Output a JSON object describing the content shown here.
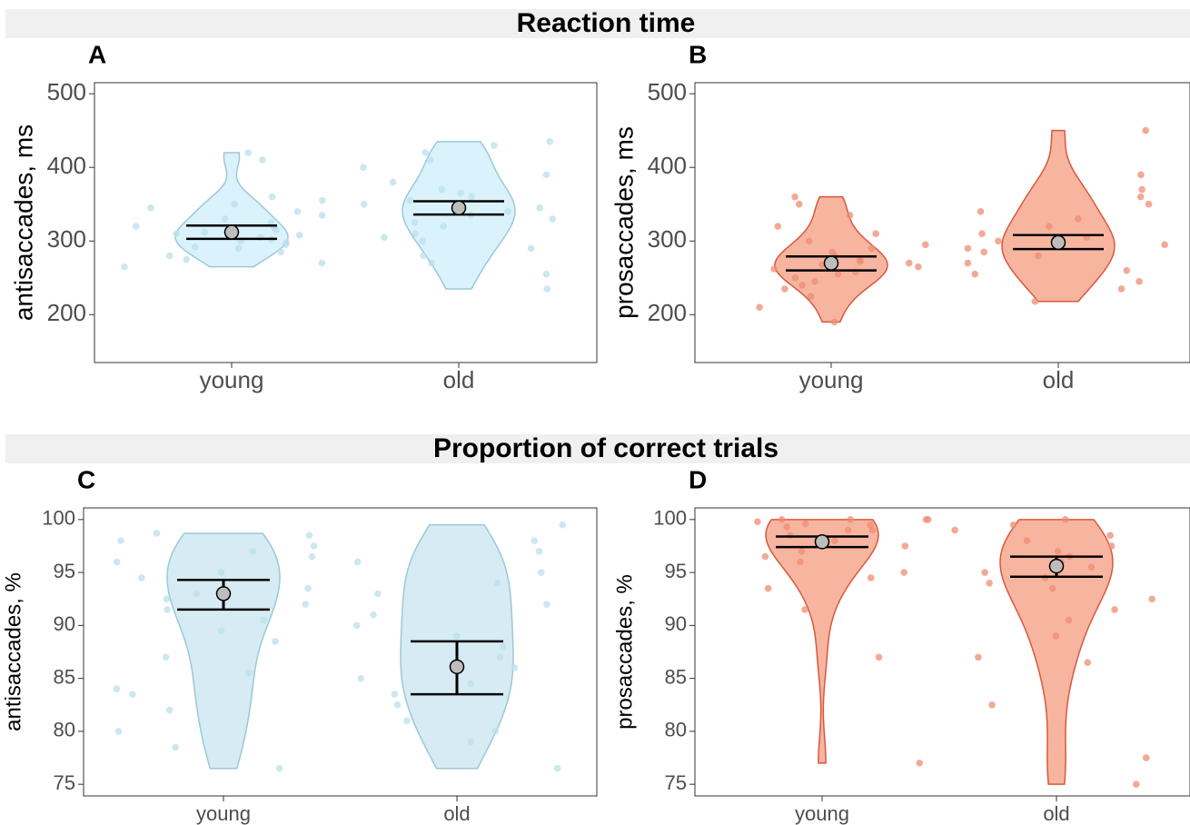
{
  "chart_data": [
    {
      "type": "violin",
      "strip_title": "Reaction time",
      "panel_label": "A",
      "ylabel": "antisaccades, ms",
      "categories": [
        "young",
        "old"
      ],
      "ylim": [
        135,
        515
      ],
      "yticks": [
        200,
        300,
        400,
        500
      ],
      "color": "#d3f0fa",
      "edge_color": "#9cc8d6",
      "values": [
        [
          265,
          270,
          275,
          280,
          285,
          290,
          292,
          295,
          298,
          300,
          302,
          305,
          308,
          310,
          312,
          315,
          318,
          320,
          325,
          330,
          335,
          340,
          345,
          350,
          355,
          360,
          410,
          420
        ],
        [
          235,
          255,
          270,
          280,
          290,
          300,
          305,
          310,
          320,
          325,
          330,
          335,
          340,
          345,
          350,
          355,
          360,
          365,
          370,
          380,
          390,
          400,
          410,
          420,
          430,
          435
        ]
      ],
      "means": [
        312,
        345
      ],
      "lower": [
        303,
        336
      ],
      "upper": [
        321,
        354
      ]
    },
    {
      "type": "violin",
      "panel_label": "B",
      "ylabel": "prosaccades, ms",
      "categories": [
        "young",
        "old"
      ],
      "ylim": [
        135,
        515
      ],
      "yticks": [
        200,
        300,
        400,
        500
      ],
      "color": "#f6a88f",
      "edge_color": "#d9573d",
      "values": [
        [
          190,
          210,
          225,
          235,
          240,
          245,
          250,
          255,
          258,
          262,
          265,
          268,
          270,
          272,
          275,
          280,
          285,
          290,
          295,
          300,
          310,
          320,
          335,
          350,
          360
        ],
        [
          218,
          235,
          245,
          255,
          260,
          270,
          280,
          285,
          290,
          295,
          300,
          305,
          310,
          320,
          330,
          340,
          350,
          360,
          370,
          390,
          450
        ]
      ],
      "means": [
        270,
        298
      ],
      "lower": [
        260,
        289
      ],
      "upper": [
        279,
        308
      ]
    },
    {
      "type": "violin",
      "strip_title": "Proportion of correct trials",
      "panel_label": "C",
      "ylabel": "antisaccades, %",
      "categories": [
        "young",
        "old"
      ],
      "ylim": [
        73.9,
        101.1
      ],
      "yticks": [
        75,
        80,
        85,
        90,
        95,
        100
      ],
      "color": "#cfe8f1",
      "edge_color": "#9cc8d6",
      "values": [
        [
          76.5,
          78.5,
          80,
          82,
          83.5,
          84,
          85.5,
          87,
          88.5,
          89.5,
          90.5,
          91.5,
          92,
          92.5,
          93,
          93.5,
          94.5,
          95,
          96,
          96.5,
          97,
          97.5,
          98,
          98.5,
          98.7
        ],
        [
          76.5,
          79,
          80,
          81,
          82.5,
          83.5,
          84.5,
          85,
          86,
          87,
          88,
          89,
          90,
          91,
          92,
          93,
          94,
          95,
          96,
          97,
          98,
          99.5
        ]
      ],
      "means": [
        93,
        86.1
      ],
      "lower": [
        91.5,
        83.5
      ],
      "upper": [
        94.3,
        88.5
      ]
    },
    {
      "type": "violin",
      "panel_label": "D",
      "ylabel": "prosaccades, %",
      "categories": [
        "young",
        "old"
      ],
      "ylim": [
        73.9,
        101.1
      ],
      "yticks": [
        75,
        80,
        85,
        90,
        95,
        100
      ],
      "color": "#f6a88f",
      "edge_color": "#d9573d",
      "values": [
        [
          77,
          87,
          91.5,
          93.5,
          94.5,
          95,
          96,
          96.5,
          97,
          97.5,
          98,
          98.5,
          99,
          99,
          99.3,
          99.5,
          99.6,
          99.8,
          100,
          100,
          100,
          100
        ],
        [
          75,
          77.5,
          82.5,
          86.5,
          87,
          89,
          90.5,
          91.5,
          92.5,
          93.5,
          94,
          94.5,
          95,
          95.5,
          96,
          96.5,
          97,
          97.5,
          98,
          98.5,
          99,
          99.5,
          100
        ]
      ],
      "means": [
        97.9,
        95.6
      ],
      "lower": [
        97.4,
        94.6
      ],
      "upper": [
        98.4,
        96.5
      ]
    }
  ]
}
